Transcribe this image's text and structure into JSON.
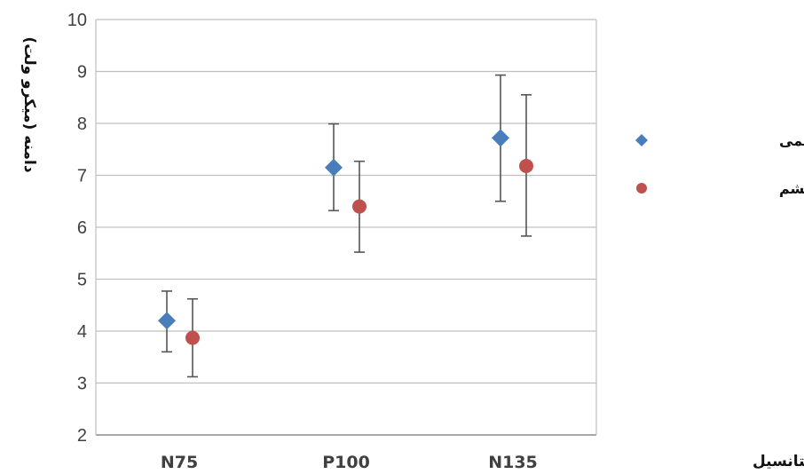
{
  "chart_data": {
    "type": "scatter",
    "categories": [
      "N75",
      "P100",
      "N135"
    ],
    "series": [
      {
        "name": "هم افزایی دو چشمی",
        "marker": "diamond",
        "color": "#4a7ebb",
        "values": [
          4.2,
          7.15,
          7.72
        ],
        "error_low": [
          3.6,
          6.32,
          6.5
        ],
        "error_high": [
          4.77,
          7.99,
          8.93
        ]
      },
      {
        "name": "میانگین دو چشم",
        "marker": "circle",
        "color": "#c0504d",
        "values": [
          3.87,
          6.4,
          7.18
        ],
        "error_low": [
          3.12,
          5.52,
          5.83
        ],
        "error_high": [
          4.62,
          7.27,
          8.55
        ]
      }
    ],
    "title": "",
    "xlabel": "مولفه های موج پتانسیل",
    "ylabel": "دامنه (میکرو ولت)",
    "ylim": [
      2,
      10
    ],
    "yticks": [
      "2",
      "3",
      "4",
      "5",
      "6",
      "7",
      "8",
      "9",
      "10"
    ],
    "grid": true,
    "legend_position": "right"
  }
}
